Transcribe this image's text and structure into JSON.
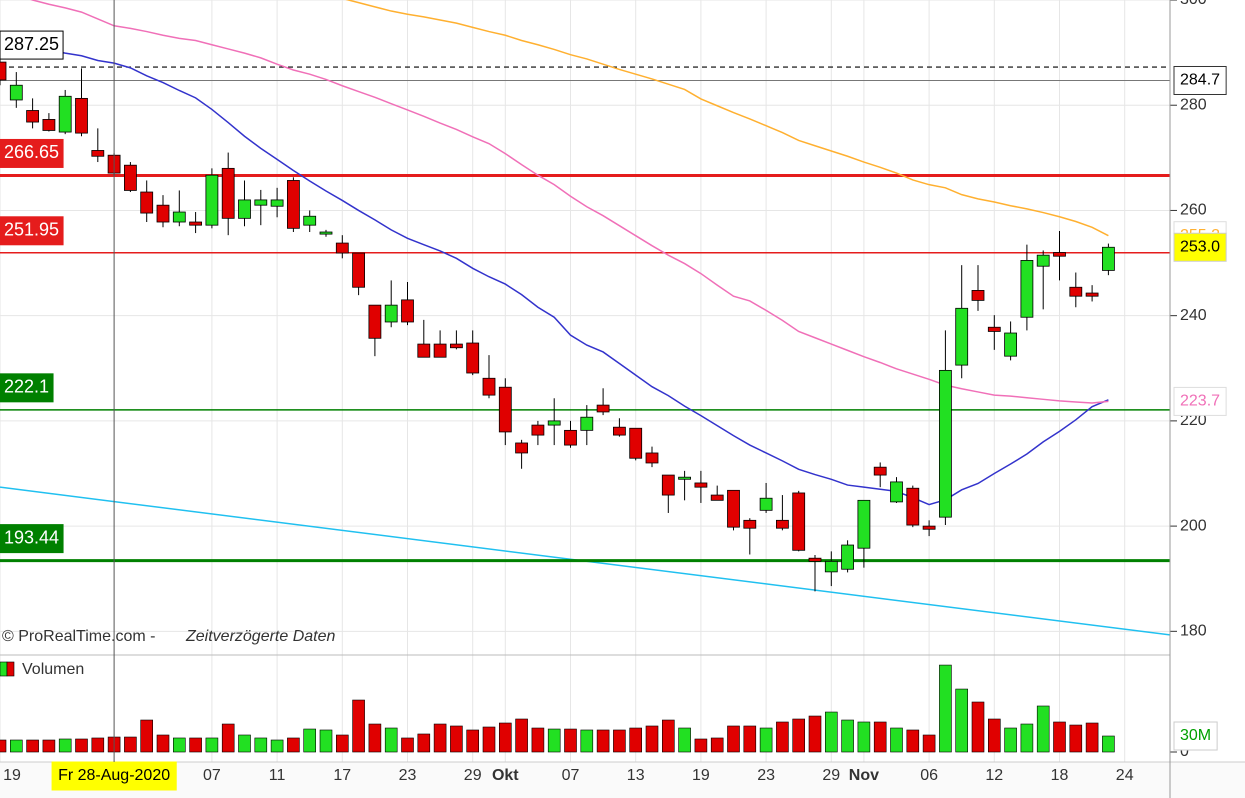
{
  "chart_data": {
    "type": "candlestick",
    "categories": [
      "19",
      null,
      null,
      null,
      null,
      null,
      null,
      "Fr 28-Aug-2020",
      null,
      null,
      null,
      null,
      null,
      "07",
      null,
      null,
      null,
      "11",
      null,
      null,
      null,
      "17",
      null,
      null,
      null,
      "23",
      null,
      null,
      null,
      "29",
      null,
      "Okt",
      null,
      null,
      null,
      "07",
      null,
      null,
      null,
      "13",
      null,
      null,
      null,
      "19",
      null,
      null,
      null,
      "23",
      null,
      null,
      null,
      "29",
      null,
      "Nov",
      null,
      null,
      null,
      "06",
      null,
      null,
      null,
      "12",
      null,
      null,
      null,
      "18",
      null,
      null,
      null,
      "24"
    ],
    "open": [
      288.2,
      281,
      279,
      277.3,
      274.9,
      281.3,
      271.4,
      270.5,
      268.6,
      263.5,
      261,
      257.8,
      257.8,
      257.2,
      268,
      258.5,
      261,
      260.8,
      265.7,
      257.2,
      255.5,
      253.8,
      251.9,
      242,
      238.8,
      243,
      234.6,
      234.6,
      234.6,
      234.8,
      228.1,
      226.4,
      215.8,
      219.2,
      219.2,
      218.2,
      218.2,
      223,
      218.8,
      218.6,
      213.9,
      209.7,
      208.9,
      208.2,
      205.9,
      206.8,
      201.1,
      203,
      201.1,
      206.3,
      193.9,
      191.3,
      191.8,
      195.8,
      211.2,
      204.6,
      207.2,
      200,
      201.7,
      230.6,
      244.8,
      237.8,
      232.3,
      239.7,
      249.4,
      252,
      245.4,
      244.3,
      248.6,
      null
    ],
    "high": [
      289.5,
      286.3,
      281.3,
      278.5,
      282.9,
      287,
      275.6,
      270.9,
      269.2,
      265.7,
      262.9,
      263.8,
      259.7,
      268,
      271,
      265.7,
      263.9,
      264.3,
      266.3,
      260,
      256.3,
      255.3,
      251.9,
      242,
      246.7,
      246.4,
      239.2,
      237.2,
      237.2,
      237.2,
      232.5,
      228.1,
      216.4,
      220,
      224.3,
      220,
      223,
      226.2,
      220.5,
      218.6,
      215.1,
      209.7,
      210.5,
      210.5,
      207.7,
      206.8,
      201.5,
      208.2,
      205.9,
      206.7,
      194.5,
      195.2,
      197.3,
      204.9,
      212.1,
      209.3,
      207.7,
      201.1,
      237.2,
      249.6,
      249.6,
      240.1,
      238.9,
      253.5,
      252.4,
      256.1,
      248.2,
      245.8,
      253.7,
      null
    ],
    "low": [
      283.8,
      279.5,
      275.6,
      275,
      274.5,
      274.1,
      269.2,
      266.7,
      263.5,
      257.8,
      256.8,
      257,
      255.7,
      256.6,
      255.3,
      257,
      257.2,
      258.7,
      255.9,
      255.9,
      255,
      250.9,
      243.9,
      232.3,
      237.8,
      238.2,
      232.1,
      232.1,
      233.6,
      228.7,
      224.3,
      215.4,
      210.9,
      215.4,
      215.4,
      214.9,
      215.4,
      221.1,
      217,
      212.5,
      211.2,
      202.5,
      204.9,
      204.4,
      204.9,
      199.2,
      194.6,
      202.5,
      199.2,
      195.2,
      187.6,
      188.6,
      191.2,
      192.1,
      207.4,
      204.4,
      199.8,
      198.1,
      200.2,
      228.1,
      240.9,
      233.5,
      231.5,
      237.2,
      241.2,
      246.7,
      241.6,
      242.7,
      247.7,
      null
    ],
    "close": [
      284.8,
      283.8,
      276.8,
      275.2,
      281.7,
      274.7,
      270.3,
      267.1,
      263.8,
      259.5,
      257.8,
      259.7,
      257.2,
      266.7,
      258.5,
      262,
      262,
      262,
      256.6,
      258.9,
      255.9,
      251.9,
      245.4,
      235.7,
      242,
      238.8,
      232.1,
      232.1,
      233.9,
      229.1,
      224.9,
      217.9,
      213.9,
      217.3,
      220,
      215.4,
      220.7,
      221.7,
      217.3,
      212.9,
      212,
      205.9,
      209.3,
      207.4,
      204.9,
      199.8,
      199.6,
      205.3,
      199.6,
      195.4,
      193.3,
      193.3,
      196.4,
      204.9,
      209.7,
      208.4,
      200.2,
      199.4,
      229.6,
      241.4,
      242.9,
      237,
      236.7,
      250.5,
      251.5,
      251.3,
      243.7,
      243.7,
      253,
      null
    ],
    "up_color": "#22e022",
    "down_color": "#e00000",
    "ylim": [
      175.5,
      300
    ],
    "yticks": [
      180,
      200,
      220,
      240,
      260,
      280,
      300
    ],
    "grid": true,
    "moving_averages": [
      {
        "color": "#3333cc",
        "values": [
          292.4,
          291.8,
          291.1,
          290.5,
          289.9,
          289.4,
          288.5,
          288.0,
          287.1,
          285.6,
          284.3,
          282.8,
          281.4,
          279.2,
          276.7,
          274.1,
          271.8,
          269.7,
          267.6,
          265.6,
          263.7,
          261.9,
          260.0,
          258.2,
          256.3,
          254.7,
          253.5,
          252.3,
          250.9,
          249.0,
          247.4,
          246.0,
          244.0,
          241.6,
          239.7,
          236.3,
          234.4,
          233.1,
          230.9,
          228.7,
          226.5,
          224.8,
          222.8,
          221.0,
          219.1,
          217.2,
          215.4,
          213.9,
          212.4,
          210.8,
          209.8,
          208.9,
          207.8,
          207.4,
          207.0,
          206.6,
          205.4,
          204.1,
          205.0,
          206.9,
          208.1,
          210.0,
          211.8,
          213.7,
          216.0,
          218.0,
          220.2,
          222.7,
          224.0,
          null
        ]
      },
      {
        "color": "#f070b8",
        "value_label": "223.7",
        "values": [
          302.0,
          301.0,
          300.0,
          299.2,
          298.5,
          297.7,
          296.4,
          295.1,
          294.6,
          294.0,
          293.3,
          292.7,
          292.3,
          291.5,
          290.7,
          289.9,
          289.0,
          287.8,
          286.7,
          285.9,
          284.9,
          283.7,
          282.6,
          281.5,
          280.3,
          279.1,
          277.9,
          276.6,
          275.4,
          274.0,
          272.7,
          270.8,
          268.7,
          266.7,
          264.9,
          262.7,
          260.7,
          259.0,
          257.1,
          255.2,
          253.3,
          251.5,
          249.9,
          248.0,
          245.8,
          243.7,
          242.8,
          241.0,
          239.1,
          237.0,
          235.8,
          234.6,
          233.4,
          232.2,
          231.1,
          229.9,
          228.9,
          227.9,
          226.8,
          226.1,
          225.5,
          224.9,
          224.7,
          224.4,
          224.1,
          223.8,
          223.6,
          223.4,
          223.7,
          null
        ]
      },
      {
        "color": "#ffb030",
        "value_label": "255.2",
        "values": [
          null,
          null,
          null,
          null,
          null,
          null,
          null,
          null,
          null,
          null,
          null,
          null,
          null,
          null,
          null,
          null,
          null,
          null,
          null,
          null,
          null,
          300.3,
          299.5,
          298.7,
          297.9,
          297.3,
          296.8,
          296.2,
          295.6,
          294.8,
          294.0,
          293.3,
          292.3,
          291.5,
          290.6,
          289.6,
          288.8,
          287.8,
          286.8,
          285.9,
          285.0,
          284.0,
          283.0,
          281.2,
          279.9,
          278.6,
          277.4,
          276.1,
          274.8,
          273.3,
          272.3,
          271.3,
          270.3,
          269.2,
          268.2,
          267.1,
          265.8,
          264.9,
          264.3,
          263.0,
          262.2,
          261.6,
          260.9,
          260.3,
          259.6,
          258.8,
          257.9,
          256.8,
          255.2,
          null
        ]
      }
    ],
    "levels": [
      {
        "value": 287.25,
        "color": "#000000",
        "style": "dashed"
      },
      {
        "value": 266.65,
        "color": "#e51c1c",
        "style": "thick"
      },
      {
        "value": 251.95,
        "color": "#e51c1c",
        "style": "thin"
      },
      {
        "value": 222.1,
        "color": "#008000",
        "style": "thin"
      },
      {
        "value": 193.44,
        "color": "#008000",
        "style": "thick"
      }
    ],
    "trendline": {
      "color": "#20c0f0",
      "values": [
        207.4,
        180.4
      ]
    },
    "crosshair": {
      "x": "Fr 28-Aug-2020",
      "y": 284.7
    },
    "last_price": {
      "value": 253.0,
      "label": "253.0",
      "color": "#ffff00"
    },
    "source": "© ProRealTime.com -",
    "note": "Zeitverzögerte Daten",
    "volume": {
      "name": "Volumen",
      "values": [
        22.5,
        22.5,
        22.5,
        22.5,
        24.4,
        24.4,
        26.3,
        28.1,
        28.1,
        60,
        31.9,
        26.3,
        26.3,
        26.3,
        52.5,
        31.9,
        26.3,
        22.5,
        26.3,
        43.1,
        41.3,
        31.9,
        97.5,
        52.5,
        45,
        26.3,
        33.8,
        52.5,
        48.8,
        41.3,
        46.9,
        54.4,
        61.9,
        45,
        43.1,
        43.1,
        41.3,
        41.3,
        41.3,
        45,
        48.8,
        60,
        45,
        24.4,
        26.3,
        48.8,
        48.8,
        45,
        56.3,
        61.9,
        67.5,
        75,
        60,
        56.3,
        56.3,
        45,
        41.3,
        31.9,
        163.1,
        118.1,
        93.8,
        61.9,
        45,
        52.5,
        86.3,
        56.3,
        50.6,
        54.4,
        30,
        null
      ],
      "ylim": [
        0,
        182
      ],
      "yticks": [
        0
      ],
      "last_label": {
        "value": 30,
        "label": "30M",
        "color": "#00a000"
      }
    }
  }
}
